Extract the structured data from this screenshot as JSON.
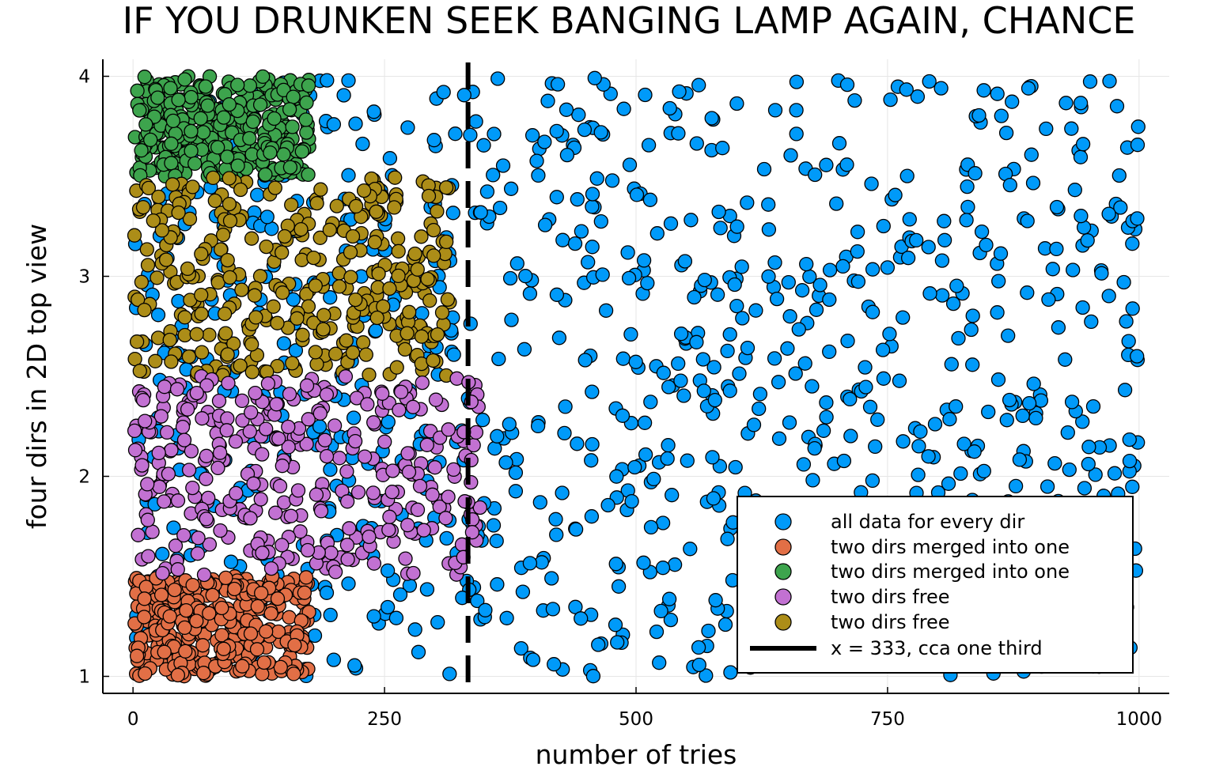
{
  "chart_data": {
    "type": "scatter",
    "title": "IF YOU DRUNKEN SEEK BANGING LAMP AGAIN, CHANCE",
    "xlabel": "number of tries",
    "ylabel": "four dirs in 2D top view",
    "xlim": [
      -30,
      1030
    ],
    "ylim": [
      0.915,
      4.085
    ],
    "xticks": [
      0,
      250,
      500,
      750,
      1000
    ],
    "xtick_labels": [
      "0",
      "250",
      "500",
      "750",
      "1000"
    ],
    "yticks": [
      1,
      2,
      3,
      4
    ],
    "ytick_labels": [
      "1",
      "2",
      "3",
      "4"
    ],
    "grid": true,
    "legend_position": "bottom-right",
    "series": [
      {
        "name": "all data for every dir",
        "color": "#009af9",
        "n": 1000,
        "x_range": [
          1,
          1000
        ],
        "y_range": [
          1,
          4
        ],
        "draw_order": 1
      },
      {
        "name": "two dirs merged into one",
        "color": "#e26f46",
        "n": 333,
        "x_range": [
          1,
          175
        ],
        "y_range": [
          1.0,
          1.5
        ],
        "draw_order": 2
      },
      {
        "name": "two dirs merged into one",
        "color": "#3da44d",
        "n": 333,
        "x_range": [
          1,
          175
        ],
        "y_range": [
          3.5,
          4.0
        ],
        "draw_order": 3
      },
      {
        "name": "two dirs free",
        "color": "#c271d2",
        "n": 333,
        "x_range": [
          1,
          345
        ],
        "y_range": [
          1.5,
          2.5
        ],
        "draw_order": 5
      },
      {
        "name": "two dirs free",
        "color": "#ac8d18",
        "n": 333,
        "x_range": [
          1,
          315
        ],
        "y_range": [
          2.5,
          3.5
        ],
        "draw_order": 4
      }
    ],
    "vline": {
      "x": 333,
      "label": "x = 333, cca one third",
      "color": "#000000",
      "style": "dashed"
    }
  }
}
